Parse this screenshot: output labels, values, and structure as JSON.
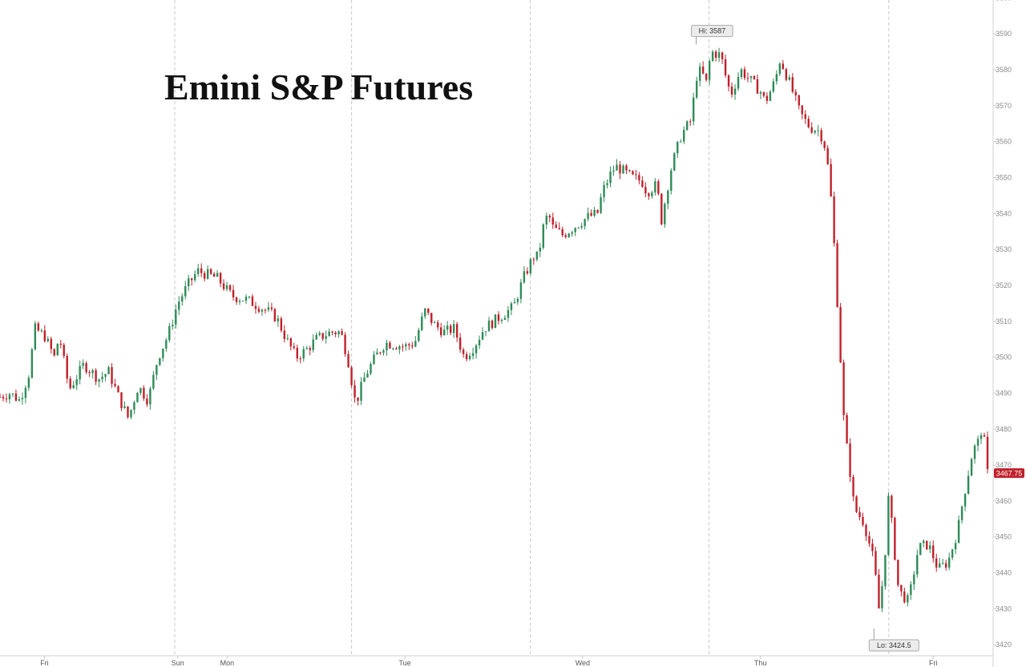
{
  "chart_data": {
    "type": "candlestick",
    "title": "Emini S&P Futures",
    "xlabel": "",
    "ylabel": "",
    "ylim": [
      3415,
      3600
    ],
    "y_ticks": [
      3420,
      3430,
      3440,
      3450,
      3460,
      3470,
      3480,
      3490,
      3500,
      3510,
      3520,
      3530,
      3540,
      3550,
      3560,
      3570,
      3580,
      3590,
      3600
    ],
    "x_ticks": [
      {
        "label": "Fri",
        "t": 0.045
      },
      {
        "label": "Sun",
        "t": 0.18
      },
      {
        "label": "Mon",
        "t": 0.23
      },
      {
        "label": "Tue",
        "t": 0.41
      },
      {
        "label": "Wed",
        "t": 0.59
      },
      {
        "label": "Thu",
        "t": 0.77
      },
      {
        "label": "Fri",
        "t": 0.945
      }
    ],
    "session_dividers": [
      0.177,
      0.356,
      0.537,
      0.718,
      0.9
    ],
    "grid": false,
    "up_color": "#2e8b57",
    "down_color": "#c0202a",
    "path": [
      [
        0.0,
        3489
      ],
      [
        0.01,
        3490
      ],
      [
        0.02,
        3488
      ],
      [
        0.03,
        3496
      ],
      [
        0.035,
        3508
      ],
      [
        0.045,
        3506
      ],
      [
        0.055,
        3500
      ],
      [
        0.06,
        3506
      ],
      [
        0.07,
        3491
      ],
      [
        0.085,
        3498
      ],
      [
        0.1,
        3494
      ],
      [
        0.11,
        3496
      ],
      [
        0.12,
        3489
      ],
      [
        0.13,
        3483
      ],
      [
        0.14,
        3492
      ],
      [
        0.15,
        3488
      ],
      [
        0.16,
        3500
      ],
      [
        0.17,
        3506
      ],
      [
        0.18,
        3515
      ],
      [
        0.19,
        3520
      ],
      [
        0.2,
        3524
      ],
      [
        0.22,
        3522
      ],
      [
        0.235,
        3517
      ],
      [
        0.25,
        3516
      ],
      [
        0.27,
        3513
      ],
      [
        0.28,
        3511
      ],
      [
        0.29,
        3505
      ],
      [
        0.3,
        3500
      ],
      [
        0.31,
        3502
      ],
      [
        0.32,
        3505
      ],
      [
        0.335,
        3507
      ],
      [
        0.345,
        3507
      ],
      [
        0.352,
        3500
      ],
      [
        0.36,
        3487
      ],
      [
        0.37,
        3495
      ],
      [
        0.38,
        3500
      ],
      [
        0.39,
        3504
      ],
      [
        0.41,
        3503
      ],
      [
        0.42,
        3504
      ],
      [
        0.43,
        3513
      ],
      [
        0.44,
        3509
      ],
      [
        0.45,
        3507
      ],
      [
        0.46,
        3508
      ],
      [
        0.47,
        3500
      ],
      [
        0.48,
        3503
      ],
      [
        0.49,
        3508
      ],
      [
        0.5,
        3510
      ],
      [
        0.51,
        3512
      ],
      [
        0.52,
        3514
      ],
      [
        0.53,
        3522
      ],
      [
        0.54,
        3528
      ],
      [
        0.545,
        3528
      ],
      [
        0.55,
        3536
      ],
      [
        0.555,
        3540
      ],
      [
        0.56,
        3536
      ],
      [
        0.57,
        3534
      ],
      [
        0.58,
        3536
      ],
      [
        0.595,
        3539
      ],
      [
        0.605,
        3540
      ],
      [
        0.61,
        3546
      ],
      [
        0.62,
        3552
      ],
      [
        0.625,
        3553
      ],
      [
        0.64,
        3550
      ],
      [
        0.65,
        3549
      ],
      [
        0.655,
        3546
      ],
      [
        0.665,
        3548
      ],
      [
        0.67,
        3538
      ],
      [
        0.675,
        3546
      ],
      [
        0.68,
        3553
      ],
      [
        0.69,
        3562
      ],
      [
        0.7,
        3566
      ],
      [
        0.705,
        3578
      ],
      [
        0.71,
        3580
      ],
      [
        0.715,
        3576
      ],
      [
        0.72,
        3585
      ],
      [
        0.73,
        3584
      ],
      [
        0.735,
        3578
      ],
      [
        0.74,
        3573
      ],
      [
        0.75,
        3580
      ],
      [
        0.76,
        3577
      ],
      [
        0.77,
        3574
      ],
      [
        0.775,
        3571
      ],
      [
        0.785,
        3577
      ],
      [
        0.79,
        3583
      ],
      [
        0.8,
        3576
      ],
      [
        0.81,
        3568
      ],
      [
        0.82,
        3564
      ],
      [
        0.83,
        3563
      ],
      [
        0.835,
        3559
      ],
      [
        0.84,
        3550
      ],
      [
        0.845,
        3530
      ],
      [
        0.85,
        3505
      ],
      [
        0.855,
        3480
      ],
      [
        0.86,
        3470
      ],
      [
        0.865,
        3458
      ],
      [
        0.875,
        3454
      ],
      [
        0.885,
        3443
      ],
      [
        0.89,
        3430
      ],
      [
        0.895,
        3440
      ],
      [
        0.9,
        3462
      ],
      [
        0.905,
        3448
      ],
      [
        0.91,
        3435
      ],
      [
        0.92,
        3432
      ],
      [
        0.93,
        3447
      ],
      [
        0.94,
        3448
      ],
      [
        0.95,
        3441
      ],
      [
        0.96,
        3443
      ],
      [
        0.97,
        3452
      ],
      [
        0.975,
        3460
      ],
      [
        0.985,
        3474
      ],
      [
        0.99,
        3476
      ],
      [
        0.995,
        3481
      ],
      [
        1.0,
        3467.75
      ]
    ],
    "annotations": [
      {
        "label": "Hi: 3587",
        "t": 0.705,
        "value": 3587
      },
      {
        "label": "Lo: 3424.5",
        "t": 0.885,
        "value": 3424.5
      }
    ],
    "last_value_label": "3467.75",
    "last_value": 3467.75
  }
}
